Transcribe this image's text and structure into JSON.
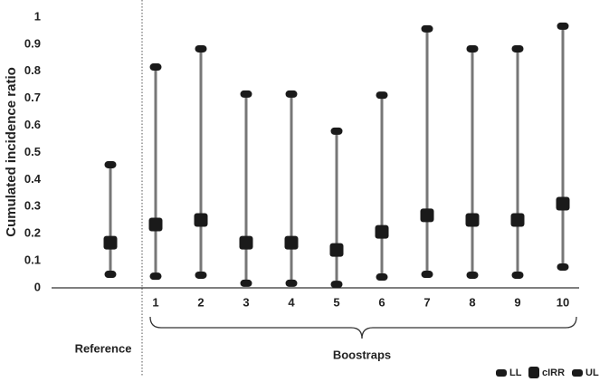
{
  "chart_data": {
    "type": "errorbar",
    "y_label": "Cumulated incidence ratio",
    "categories": [
      "Reference",
      "1",
      "2",
      "3",
      "4",
      "5",
      "6",
      "7",
      "8",
      "9",
      "10"
    ],
    "group_label": "Boostraps",
    "series": [
      {
        "name": "LL",
        "color": "#1a1a1a",
        "values": [
          0.05,
          0.043,
          0.047,
          0.017,
          0.017,
          0.013,
          0.04,
          0.05,
          0.047,
          0.047,
          0.077
        ]
      },
      {
        "name": "cIRR",
        "color": "#1a1a1a",
        "values": [
          0.167,
          0.234,
          0.251,
          0.167,
          0.167,
          0.14,
          0.207,
          0.268,
          0.251,
          0.251,
          0.311
        ]
      },
      {
        "name": "UL",
        "color": "#1a1a1a",
        "values": [
          0.455,
          0.816,
          0.883,
          0.716,
          0.716,
          0.579,
          0.712,
          0.957,
          0.883,
          0.883,
          0.967
        ]
      }
    ],
    "bar_color": "#777777",
    "ylim": [
      0,
      1
    ],
    "yticks": [
      0,
      0.1,
      0.2,
      0.3,
      0.4,
      0.5,
      0.6,
      0.7,
      0.8,
      0.9,
      1
    ],
    "legend": "bottom-right"
  }
}
